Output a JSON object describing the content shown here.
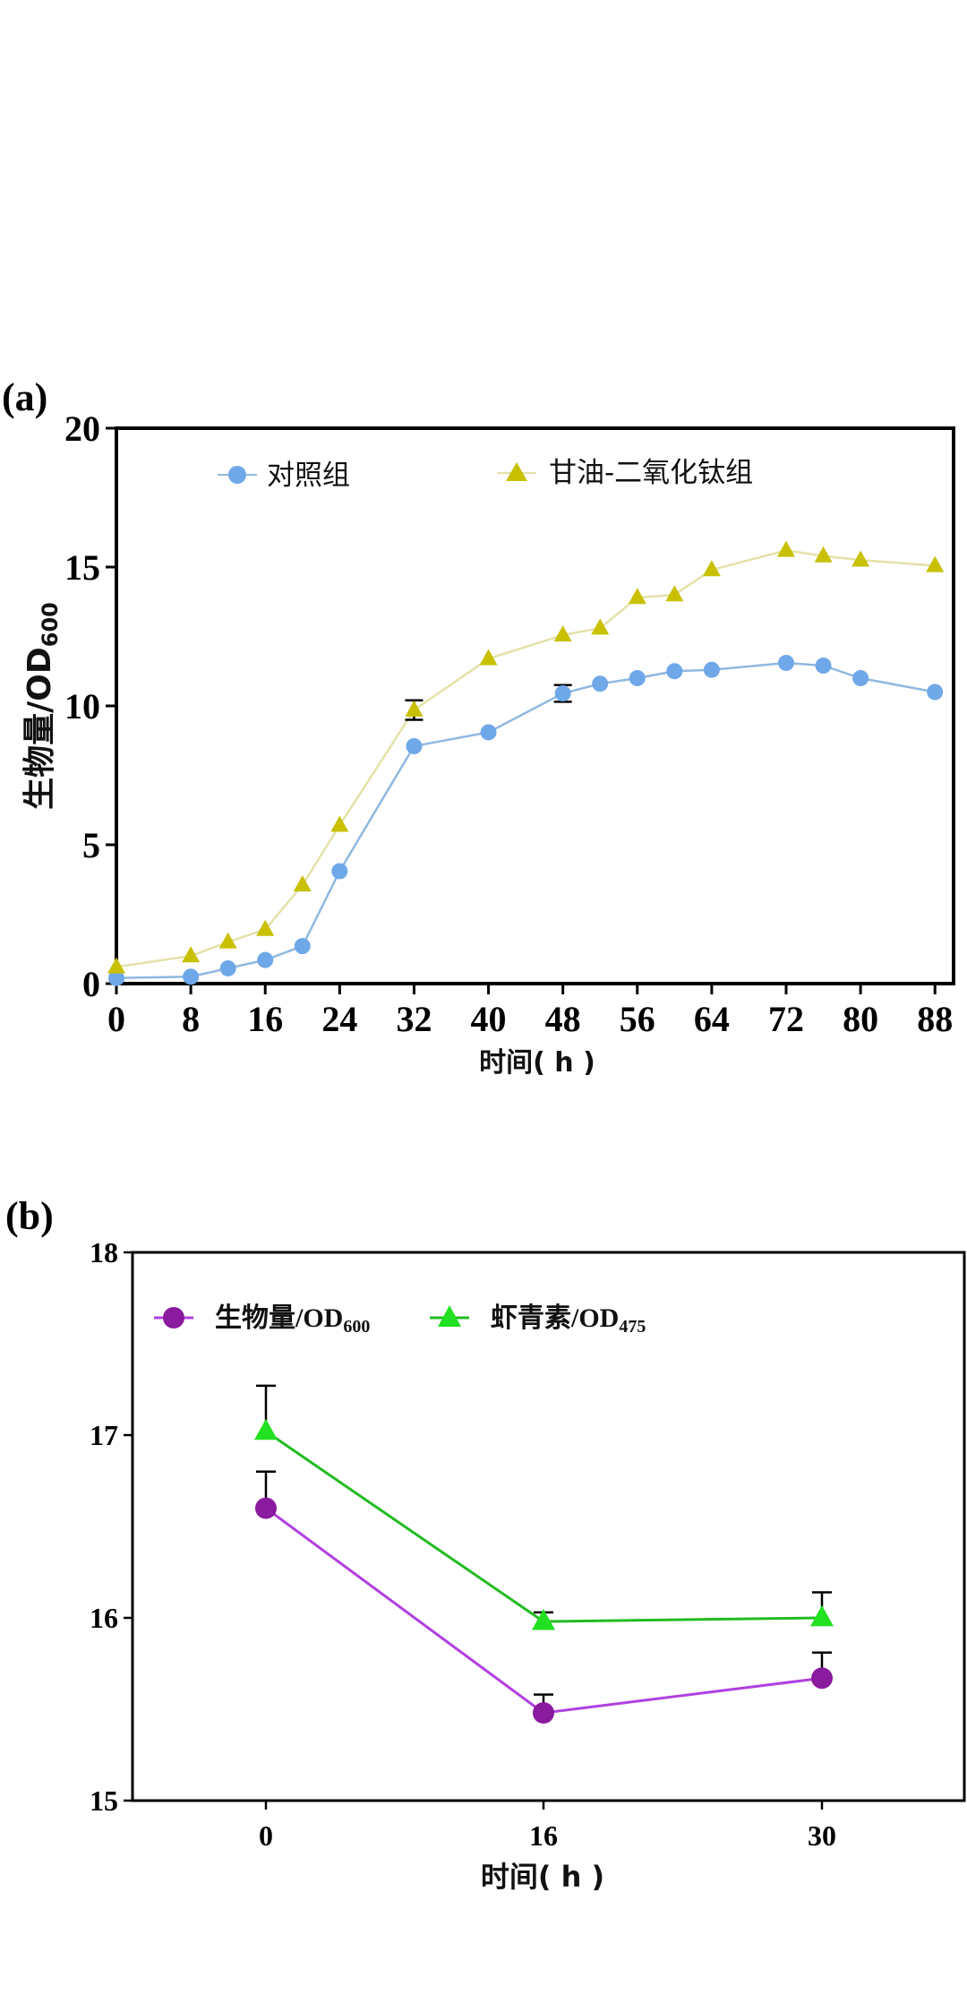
{
  "chart_data": [
    {
      "panel": "(a)",
      "type": "line",
      "title": "",
      "xlabel": "时间( h )",
      "ylabel_main": "生物量/OD",
      "ylabel_sub": "600",
      "xlim": [
        0,
        90
      ],
      "ylim": [
        0,
        20
      ],
      "xticks": [
        0,
        8,
        16,
        24,
        32,
        40,
        48,
        56,
        64,
        72,
        80,
        88
      ],
      "yticks": [
        0,
        5,
        10,
        15,
        20
      ],
      "legend_position": "top",
      "series": [
        {
          "name": "对照组",
          "color": "#6FA8E8",
          "line_color": "#8FB8E0",
          "marker": "circle",
          "x": [
            0,
            8,
            12,
            16,
            20,
            24,
            32,
            40,
            48,
            52,
            56,
            60,
            64,
            72,
            76,
            80,
            88
          ],
          "y": [
            0.2,
            0.25,
            0.55,
            0.85,
            1.35,
            4.05,
            8.55,
            9.05,
            10.45,
            10.8,
            11.0,
            11.25,
            11.3,
            11.55,
            11.45,
            11.0,
            10.5
          ],
          "err": [
            0,
            0,
            0,
            0,
            0,
            0,
            0,
            0,
            0.3,
            0,
            0,
            0,
            0,
            0,
            0,
            0,
            0
          ]
        },
        {
          "name": "甘油-二氧化钛组",
          "color": "#C8C000",
          "line_color": "#E4E2A8",
          "marker": "triangle",
          "x": [
            0,
            8,
            12,
            16,
            20,
            24,
            32,
            40,
            48,
            52,
            56,
            60,
            64,
            72,
            76,
            80,
            88
          ],
          "y": [
            0.6,
            1.0,
            1.5,
            1.95,
            3.55,
            5.7,
            9.85,
            11.7,
            12.55,
            12.8,
            13.9,
            14.0,
            14.9,
            15.6,
            15.4,
            15.25,
            15.05
          ],
          "err": [
            0,
            0,
            0,
            0,
            0,
            0,
            0.35,
            0,
            0,
            0,
            0,
            0,
            0,
            0,
            0,
            0,
            0
          ]
        }
      ]
    },
    {
      "panel": "(b)",
      "type": "line",
      "title": "",
      "xlabel": "时间( h )",
      "categories": [
        "0",
        "16",
        "30"
      ],
      "ylim": [
        15,
        18
      ],
      "yticks": [
        15,
        16,
        17,
        18
      ],
      "legend_position": "top-left",
      "series": [
        {
          "name_main": "生物量/OD",
          "name_sub": "600",
          "color": "#8A1A9E",
          "line_color": "#B040E0",
          "marker": "circle",
          "values": [
            16.6,
            15.48,
            15.67
          ],
          "err": [
            0.2,
            0.1,
            0.14
          ]
        },
        {
          "name_main": "虾青素/OD",
          "name_sub": "475",
          "color": "#22E022",
          "line_color": "#22BB22",
          "marker": "triangle",
          "values": [
            17.02,
            15.98,
            16.0
          ],
          "err": [
            0.25,
            0.05,
            0.14
          ]
        }
      ]
    }
  ]
}
